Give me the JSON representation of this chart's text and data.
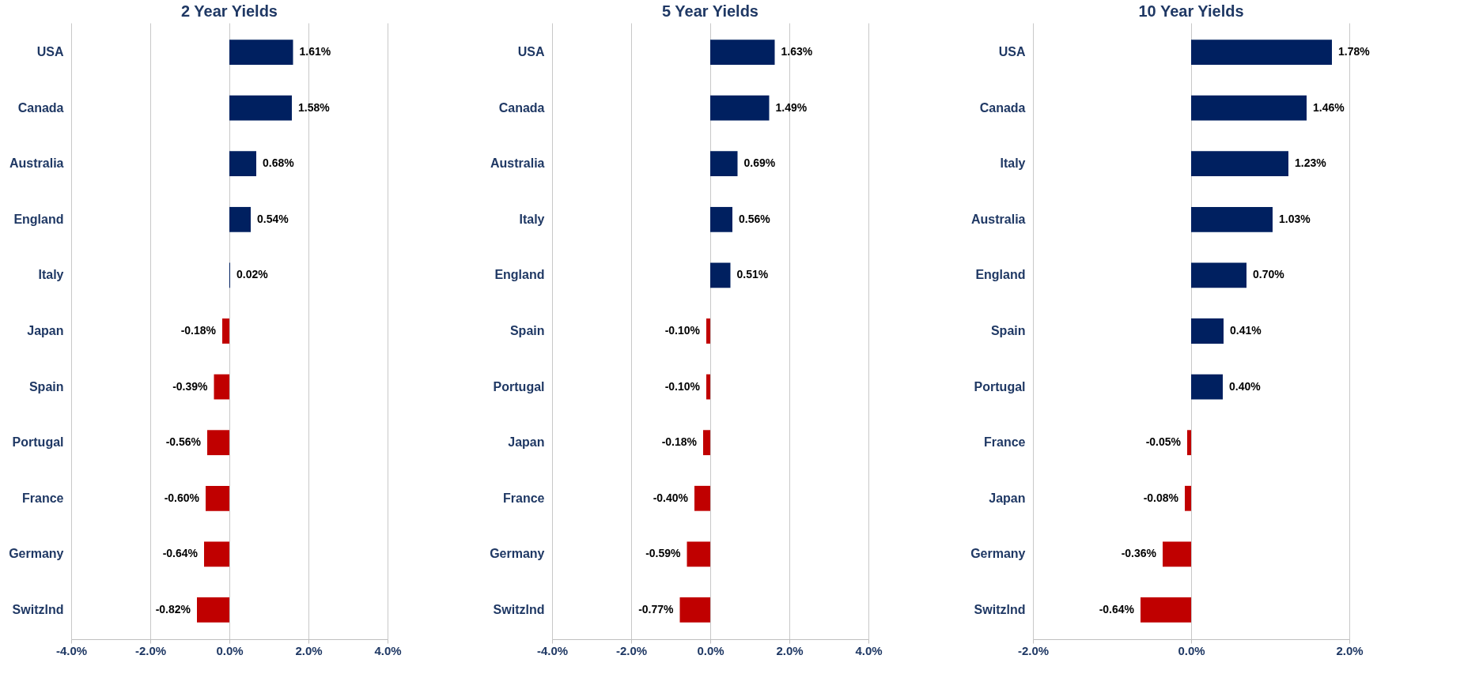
{
  "chart_data": [
    {
      "type": "bar",
      "orientation": "horizontal",
      "title": "2 Year Yields",
      "categories": [
        "USA",
        "Canada",
        "Australia",
        "England",
        "Italy",
        "Japan",
        "Spain",
        "Portugal",
        "France",
        "Germany",
        "Switzlnd"
      ],
      "values": [
        1.61,
        1.58,
        0.68,
        0.54,
        0.02,
        -0.18,
        -0.39,
        -0.56,
        -0.6,
        -0.64,
        -0.82
      ],
      "colors": [
        "#002060",
        "#002060",
        "#002060",
        "#002060",
        "#002060",
        "#c00000",
        "#c00000",
        "#c00000",
        "#c00000",
        "#c00000",
        "#c00000"
      ],
      "value_labels": [
        "1.61%",
        "1.58%",
        "0.68%",
        "0.54%",
        "0.02%",
        "-0.18%",
        "-0.39%",
        "-0.56%",
        "-0.60%",
        "-0.64%",
        "-0.82%"
      ],
      "xlim": [
        -4,
        4
      ],
      "xticks": [
        {
          "value": -4,
          "label": "-4.0%"
        },
        {
          "value": -2,
          "label": "-2.0%"
        },
        {
          "value": 0,
          "label": "0.0%"
        },
        {
          "value": 2,
          "label": "2.0%"
        },
        {
          "value": 4,
          "label": "4.0%"
        }
      ],
      "grid": "x"
    },
    {
      "type": "bar",
      "orientation": "horizontal",
      "title": "5 Year Yields",
      "categories": [
        "USA",
        "Canada",
        "Australia",
        "Italy",
        "England",
        "Spain",
        "Portugal",
        "Japan",
        "France",
        "Germany",
        "Switzlnd"
      ],
      "values": [
        1.63,
        1.49,
        0.69,
        0.56,
        0.51,
        -0.1,
        -0.1,
        -0.18,
        -0.4,
        -0.59,
        -0.77
      ],
      "colors": [
        "#002060",
        "#002060",
        "#002060",
        "#002060",
        "#002060",
        "#c00000",
        "#c00000",
        "#c00000",
        "#c00000",
        "#c00000",
        "#c00000"
      ],
      "value_labels": [
        "1.63%",
        "1.49%",
        "0.69%",
        "0.56%",
        "0.51%",
        "-0.10%",
        "-0.10%",
        "-0.18%",
        "-0.40%",
        "-0.59%",
        "-0.77%"
      ],
      "xlim": [
        -4,
        4
      ],
      "xticks": [
        {
          "value": -4,
          "label": "-4.0%"
        },
        {
          "value": -2,
          "label": "-2.0%"
        },
        {
          "value": 0,
          "label": "0.0%"
        },
        {
          "value": 2,
          "label": "2.0%"
        },
        {
          "value": 4,
          "label": "4.0%"
        }
      ],
      "grid": "x"
    },
    {
      "type": "bar",
      "orientation": "horizontal",
      "title": "10 Year Yields",
      "categories": [
        "USA",
        "Canada",
        "Italy",
        "Australia",
        "England",
        "Spain",
        "Portugal",
        "France",
        "Japan",
        "Germany",
        "Switzlnd"
      ],
      "values": [
        1.78,
        1.46,
        1.23,
        1.03,
        0.7,
        0.41,
        0.4,
        -0.05,
        -0.08,
        -0.36,
        -0.64
      ],
      "colors": [
        "#002060",
        "#002060",
        "#002060",
        "#002060",
        "#002060",
        "#002060",
        "#002060",
        "#c00000",
        "#c00000",
        "#c00000",
        "#c00000"
      ],
      "value_labels": [
        "1.78%",
        "1.46%",
        "1.23%",
        "1.03%",
        "0.70%",
        "0.41%",
        "0.40%",
        "-0.05%",
        "-0.08%",
        "-0.36%",
        "-0.64%"
      ],
      "xlim": [
        -2,
        2
      ],
      "xticks": [
        {
          "value": -2,
          "label": "-2.0%"
        },
        {
          "value": 0,
          "label": "0.0%"
        },
        {
          "value": 2,
          "label": "2.0%"
        }
      ],
      "grid": "x"
    }
  ]
}
